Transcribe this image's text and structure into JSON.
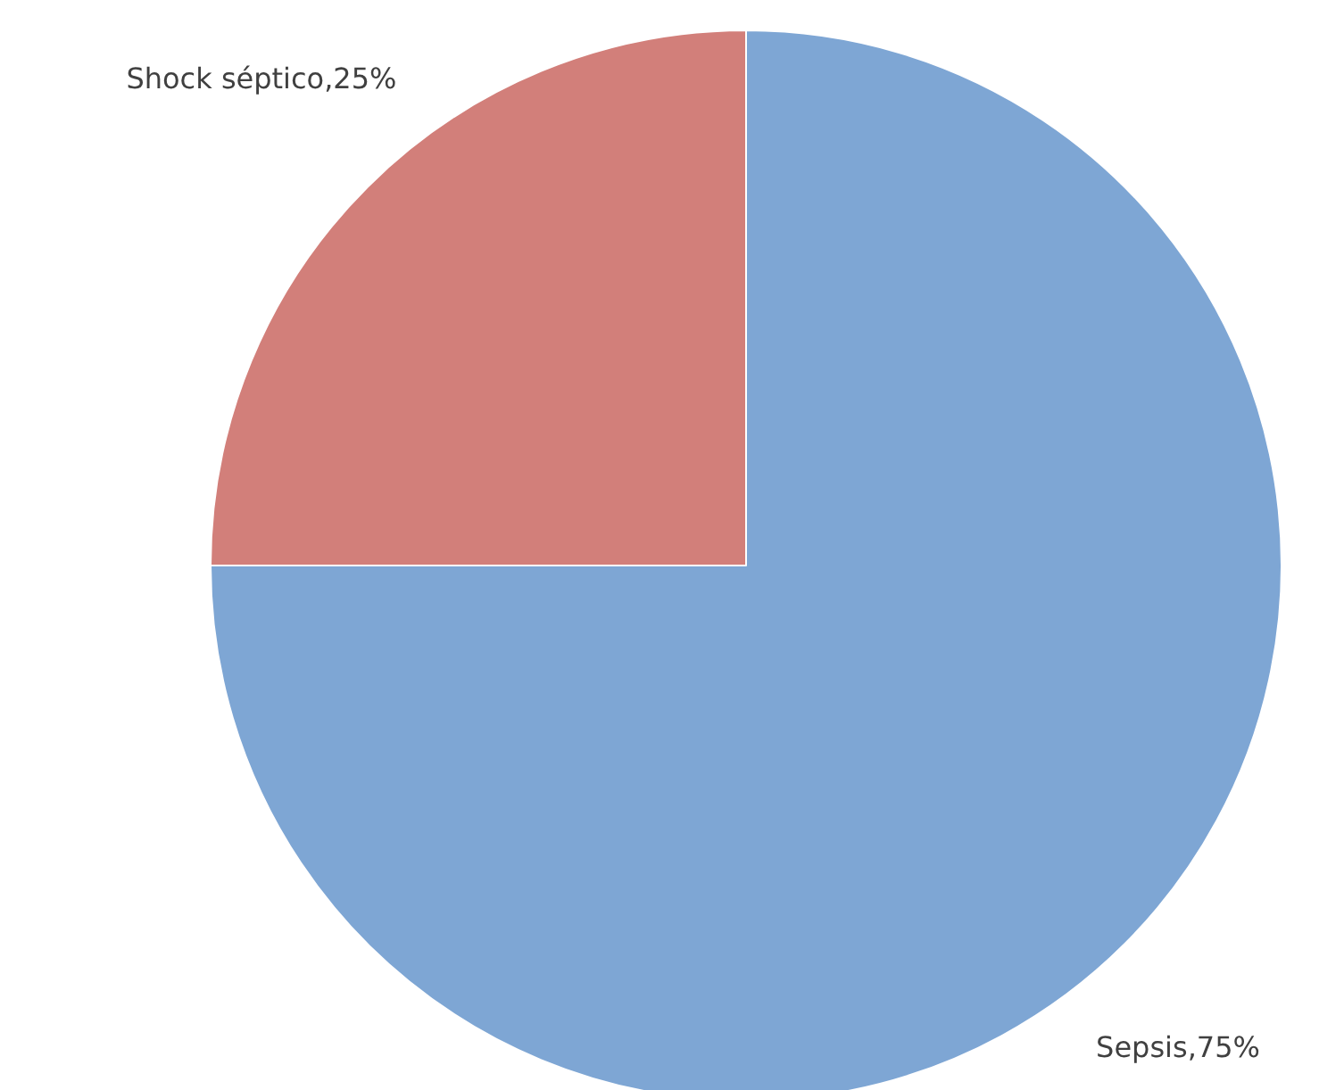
{
  "chart_data": {
    "type": "pie",
    "categories": [
      "Sepsis",
      "Shock séptico"
    ],
    "values": [
      75,
      25
    ],
    "colors": [
      "#7ea6d4",
      "#d27f7a"
    ],
    "value_labels": [
      "75%",
      "25%"
    ],
    "legend": false
  }
}
